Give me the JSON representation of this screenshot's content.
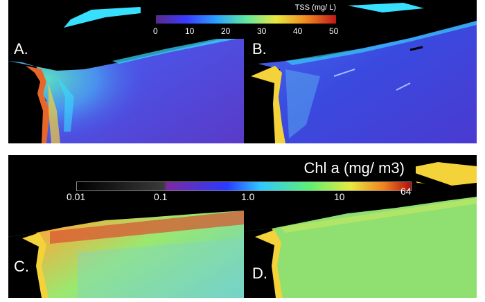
{
  "panels": {
    "a": {
      "label": "A."
    },
    "b": {
      "label": "B."
    },
    "c": {
      "label": "C."
    },
    "d": {
      "label": "D."
    }
  },
  "tss_colorbar": {
    "title": "TSS (mg/ L)",
    "ticks": [
      "0",
      "10",
      "20",
      "30",
      "40",
      "50"
    ],
    "colors": [
      "#5a2a8a",
      "#3a3aff",
      "#2aa0ff",
      "#60e8a0",
      "#e8e840",
      "#f08a20",
      "#c01818"
    ]
  },
  "chl_colorbar": {
    "title": "Chl a (mg/ m3)",
    "ticks": [
      "0.01",
      "0.1",
      "1.0",
      "10",
      "64"
    ],
    "colors": [
      "#000000",
      "#3a3a3a",
      "#7a2aa0",
      "#2a3aff",
      "#30c8ff",
      "#60f070",
      "#e8e840",
      "#f08020",
      "#b01010"
    ]
  },
  "colors": {
    "land": "#000000",
    "coast_cyan": "#37e0ff",
    "coast_yellow": "#f3d23a",
    "ocean_blue": "#3a4adf",
    "ocean_purple": "#5a3ac8",
    "plume_orange": "#e8662a",
    "ocean_green": "#8fe070"
  }
}
